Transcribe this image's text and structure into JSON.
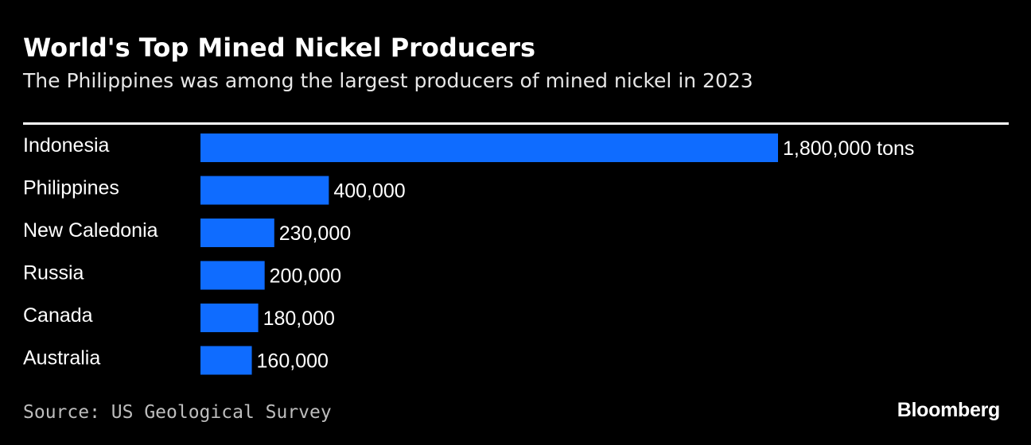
{
  "header": {
    "title": "World's Top Mined Nickel Producers",
    "subtitle": "The Philippines was among the largest producers of mined nickel in 2023"
  },
  "footer": {
    "source": "Source: US Geological Survey",
    "brand": "Bloomberg"
  },
  "colors": {
    "background": "#000000",
    "bar": "#0f6cff",
    "text": "#ffffff"
  },
  "chart_data": {
    "type": "bar",
    "orientation": "horizontal",
    "title": "World's Top Mined Nickel Producers",
    "subtitle": "The Philippines was among the largest producers of mined nickel in 2023",
    "categories": [
      "Indonesia",
      "Philippines",
      "New Caledonia",
      "Russia",
      "Canada",
      "Australia"
    ],
    "values": [
      1800000,
      400000,
      230000,
      200000,
      180000,
      160000
    ],
    "value_labels": [
      "1,800,000 tons",
      "400,000",
      "230,000",
      "200,000",
      "180,000",
      "160,000"
    ],
    "unit": "tons",
    "xlim": [
      0,
      1800000
    ],
    "grid": false,
    "legend": "none"
  }
}
